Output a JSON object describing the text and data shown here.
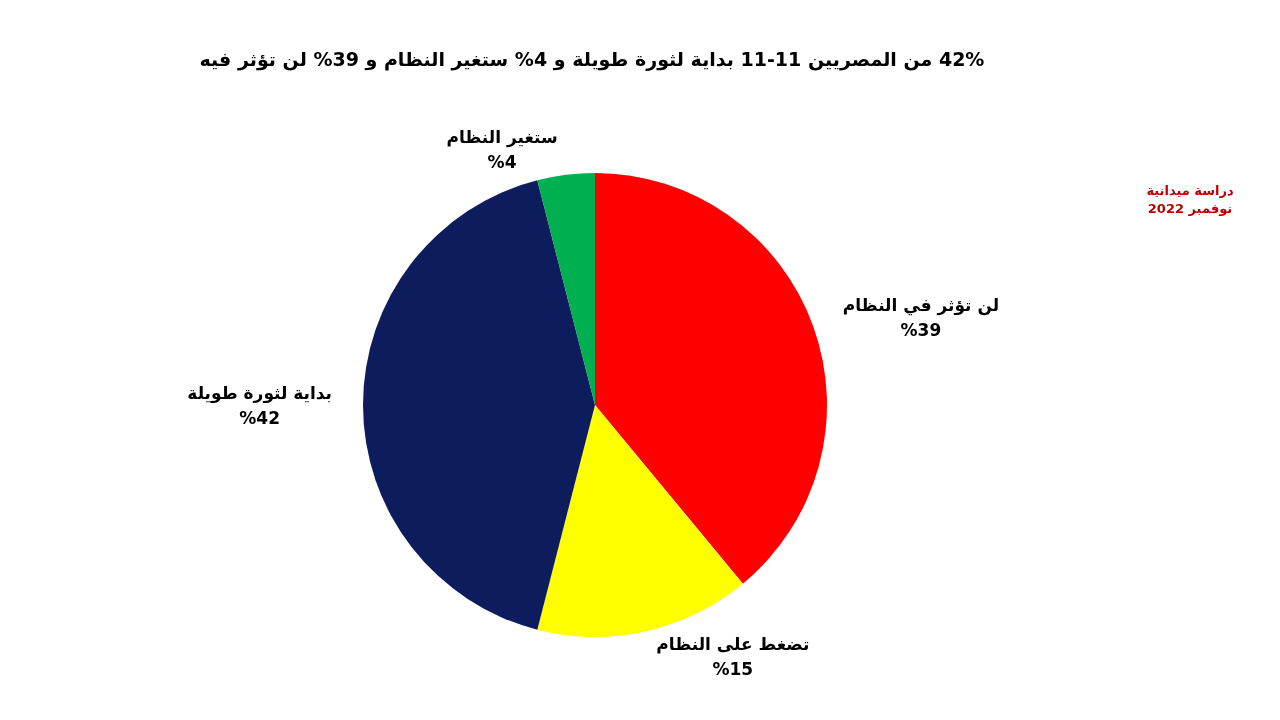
{
  "chart_data": {
    "type": "pie",
    "title": "42% من المصريين 11-11 بداية لثورة طويلة و 4% ستغير النظام  و 39% لن تؤثر فيه",
    "categories": [
      "لن تؤثر في النظام",
      "تضغط على النظام",
      "بداية لثورة طويلة",
      "ستغير النظام"
    ],
    "values": [
      39,
      15,
      42,
      4
    ],
    "value_labels": [
      "%39",
      "%15",
      "%42",
      "%4"
    ],
    "colors": [
      "#ff0000",
      "#ffff00",
      "#0c1c5c",
      "#00b050"
    ],
    "annotations": [
      "دراسة ميدانية\nنوفمبر 2022"
    ]
  }
}
